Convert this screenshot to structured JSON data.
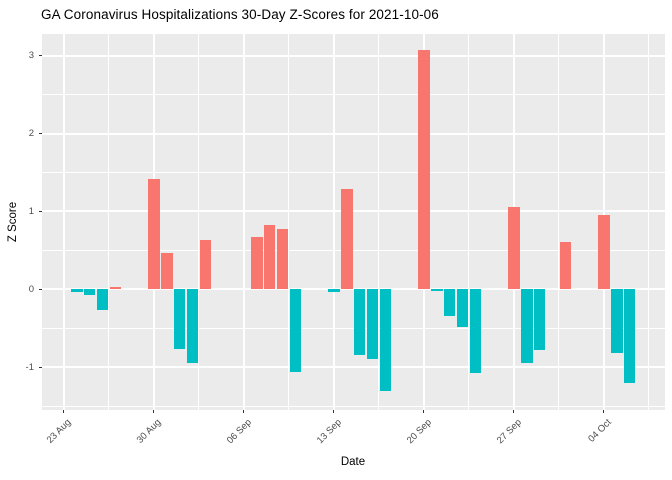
{
  "chart_data": {
    "type": "bar",
    "title": "GA Coronavirus Hospitalizations 30-Day Z-Scores for 2021-10-06",
    "xlabel": "Date",
    "ylabel": "Z Score",
    "legend": "none",
    "grid": "on",
    "ylim": [
      -1.55,
      3.28
    ],
    "xlim_days": [
      -1.71,
      46.75
    ],
    "y_ticks": [
      3,
      2,
      1,
      0,
      -1
    ],
    "y_minor_ticks": [
      2.5,
      1.5,
      0.5,
      -0.5,
      -1.5
    ],
    "x_ticks": [
      {
        "label": "23 Aug",
        "day": 0
      },
      {
        "label": "30 Aug",
        "day": 7
      },
      {
        "label": "06 Sep",
        "day": 14
      },
      {
        "label": "13 Sep",
        "day": 21
      },
      {
        "label": "20 Sep",
        "day": 28
      },
      {
        "label": "27 Sep",
        "day": 35
      },
      {
        "label": "04 Oct",
        "day": 42
      }
    ],
    "x_minor_tick_days": [
      3.5,
      10.5,
      17.5,
      24.5,
      31.5,
      38.5,
      45.5
    ],
    "colors": {
      "positive": "#F8766D",
      "negative": "#00BFC4",
      "panel_bg": "#EBEBEB",
      "grid": "#FFFFFF",
      "axis_text": "#4D4D4D",
      "tick_mark": "#333333"
    },
    "bars": [
      {
        "date": "2021-08-24",
        "day": 1,
        "value": -0.03
      },
      {
        "date": "2021-08-25",
        "day": 2,
        "value": -0.07
      },
      {
        "date": "2021-08-26",
        "day": 3,
        "value": -0.26
      },
      {
        "date": "2021-08-27",
        "day": 4,
        "value": 0.03
      },
      {
        "date": "2021-08-30",
        "day": 7,
        "value": 1.42
      },
      {
        "date": "2021-08-31",
        "day": 8,
        "value": 0.47
      },
      {
        "date": "2021-09-01",
        "day": 9,
        "value": -0.77
      },
      {
        "date": "2021-09-02",
        "day": 10,
        "value": -0.95
      },
      {
        "date": "2021-09-03",
        "day": 11,
        "value": 0.63
      },
      {
        "date": "2021-09-07",
        "day": 15,
        "value": 0.67
      },
      {
        "date": "2021-09-08",
        "day": 16,
        "value": 0.83
      },
      {
        "date": "2021-09-09",
        "day": 17,
        "value": 0.77
      },
      {
        "date": "2021-09-10",
        "day": 18,
        "value": -1.06
      },
      {
        "date": "2021-09-13",
        "day": 21,
        "value": -0.04
      },
      {
        "date": "2021-09-14",
        "day": 22,
        "value": 1.29
      },
      {
        "date": "2021-09-15",
        "day": 23,
        "value": -0.84
      },
      {
        "date": "2021-09-16",
        "day": 24,
        "value": -0.89
      },
      {
        "date": "2021-09-17",
        "day": 25,
        "value": -1.3
      },
      {
        "date": "2021-09-20",
        "day": 28,
        "value": 3.08
      },
      {
        "date": "2021-09-21",
        "day": 29,
        "value": -0.02
      },
      {
        "date": "2021-09-22",
        "day": 30,
        "value": -0.34
      },
      {
        "date": "2021-09-23",
        "day": 31,
        "value": -0.49
      },
      {
        "date": "2021-09-24",
        "day": 32,
        "value": -1.07
      },
      {
        "date": "2021-09-27",
        "day": 35,
        "value": 1.06
      },
      {
        "date": "2021-09-28",
        "day": 36,
        "value": -0.94
      },
      {
        "date": "2021-09-29",
        "day": 37,
        "value": -0.78
      },
      {
        "date": "2021-10-01",
        "day": 39,
        "value": 0.61
      },
      {
        "date": "2021-10-04",
        "day": 42,
        "value": 0.96
      },
      {
        "date": "2021-10-05",
        "day": 43,
        "value": -0.82
      },
      {
        "date": "2021-10-06",
        "day": 44,
        "value": -1.2
      }
    ]
  }
}
